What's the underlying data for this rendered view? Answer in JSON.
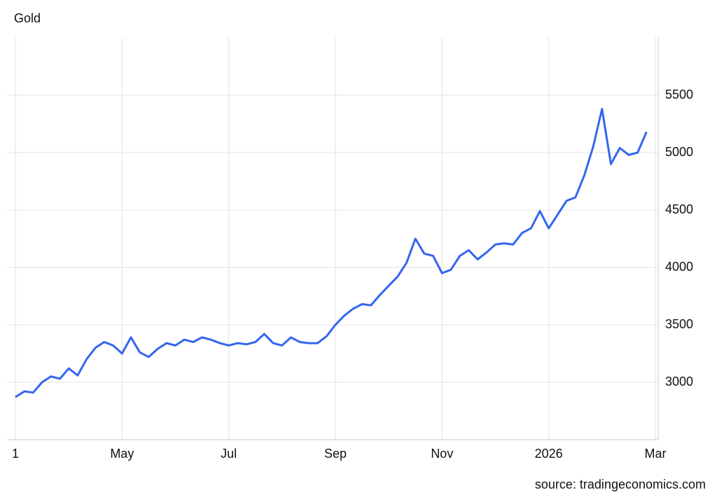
{
  "chart_data": {
    "type": "line",
    "title": "Gold",
    "source": "source: tradingeconomics.com",
    "categories": [
      "1",
      null,
      null,
      null,
      null,
      null,
      null,
      null,
      null,
      null,
      null,
      null,
      "May",
      null,
      null,
      null,
      null,
      null,
      null,
      null,
      null,
      null,
      null,
      null,
      "Jul",
      null,
      null,
      null,
      null,
      null,
      null,
      null,
      null,
      null,
      null,
      null,
      "Sep",
      null,
      null,
      null,
      null,
      null,
      null,
      null,
      null,
      null,
      null,
      null,
      "Nov",
      null,
      null,
      null,
      null,
      null,
      null,
      null,
      null,
      null,
      null,
      null,
      "2026",
      null,
      null,
      null,
      null,
      null,
      null,
      null,
      null,
      null,
      null,
      null,
      "Mar"
    ],
    "series": [
      {
        "name": "Gold",
        "color": "#3366f0",
        "values": [
          2870,
          2920,
          2910,
          3000,
          3050,
          3030,
          3120,
          3060,
          3200,
          3300,
          3350,
          3320,
          3250,
          3390,
          3260,
          3220,
          3290,
          3340,
          3320,
          3370,
          3350,
          3390,
          3370,
          3340,
          3320,
          3340,
          3330,
          3350,
          3420,
          3340,
          3320,
          3390,
          3350,
          3340,
          3340,
          3400,
          3500,
          3580,
          3640,
          3680,
          3670,
          3760,
          3840,
          3920,
          4040,
          4250,
          4120,
          4100,
          3950,
          3980,
          4100,
          4150,
          4070,
          4130,
          4200,
          4210,
          4200,
          4300,
          4340,
          4490,
          4340,
          4460,
          4580,
          4610,
          4800,
          5050,
          5380,
          4900,
          5040,
          4980,
          5000,
          5180,
          null
        ]
      }
    ],
    "ylim": [
      2500,
      6000
    ],
    "yticks": [
      3000,
      3500,
      4000,
      4500,
      5000,
      5500
    ],
    "grid": true,
    "y_axis_side": "right"
  }
}
